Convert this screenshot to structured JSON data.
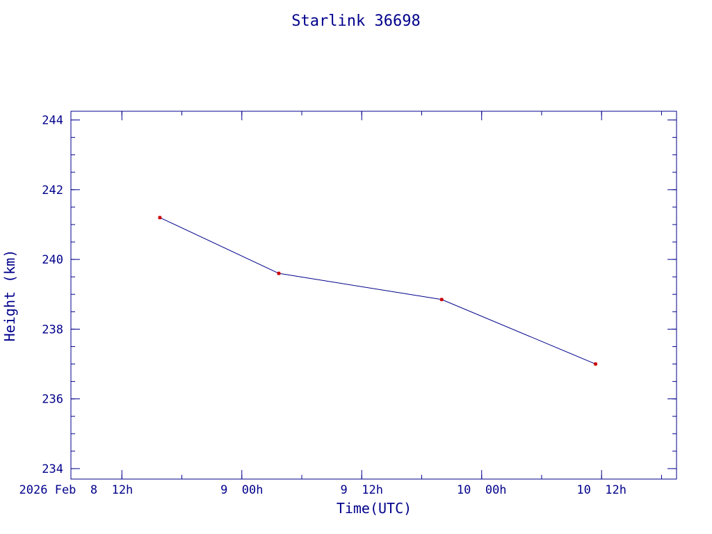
{
  "chart_data": {
    "type": "line",
    "title": "Starlink 36698",
    "xlabel": "Time(UTC)",
    "ylabel": "Height (km)",
    "x_unit": "hours",
    "xlim": [
      "2026-02-08T06:54",
      "2026-02-10T19:30"
    ],
    "ylim": [
      233.7,
      244.25
    ],
    "x_major_ticks": [
      {
        "value": "2026-02-08T12:00",
        "label": "2026 Feb  8  12h"
      },
      {
        "value": "2026-02-09T00:00",
        "label": "9  00h"
      },
      {
        "value": "2026-02-09T12:00",
        "label": "9  12h"
      },
      {
        "value": "2026-02-10T00:00",
        "label": "10  00h"
      },
      {
        "value": "2026-02-10T12:00",
        "label": "10  12h"
      }
    ],
    "x_minor_step_hours": 6,
    "y_major_ticks": [
      234,
      236,
      238,
      240,
      242,
      244
    ],
    "y_minor_step": 0.5,
    "grid": false,
    "legend": "none",
    "series": [
      {
        "x": [
          "2026-02-08T15:48",
          "2026-02-09T03:42",
          "2026-02-09T20:00",
          "2026-02-10T11:24"
        ],
        "y": [
          241.2,
          239.6,
          238.85,
          237.0
        ]
      }
    ],
    "colors": {
      "axes": "#00008b",
      "line": "#00008b",
      "marker": "#cc0000"
    }
  }
}
